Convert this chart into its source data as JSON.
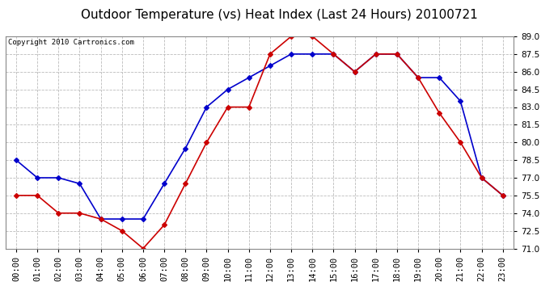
{
  "title": "Outdoor Temperature (vs) Heat Index (Last 24 Hours) 20100721",
  "copyright": "Copyright 2010 Cartronics.com",
  "hours": [
    "00:00",
    "01:00",
    "02:00",
    "03:00",
    "04:00",
    "05:00",
    "06:00",
    "07:00",
    "08:00",
    "09:00",
    "10:00",
    "11:00",
    "12:00",
    "13:00",
    "14:00",
    "15:00",
    "16:00",
    "17:00",
    "18:00",
    "19:00",
    "20:00",
    "21:00",
    "22:00",
    "23:00"
  ],
  "blue_data": [
    78.5,
    77.0,
    77.0,
    76.5,
    73.5,
    73.5,
    73.5,
    76.5,
    79.5,
    83.0,
    84.5,
    85.5,
    86.5,
    87.5,
    87.5,
    87.5,
    86.0,
    87.5,
    87.5,
    85.5,
    85.5,
    83.5,
    77.0,
    75.5
  ],
  "red_data": [
    75.5,
    75.5,
    74.0,
    74.0,
    73.5,
    72.5,
    71.0,
    73.0,
    76.5,
    80.0,
    83.0,
    83.0,
    87.5,
    89.0,
    89.0,
    87.5,
    86.0,
    87.5,
    87.5,
    85.5,
    82.5,
    80.0,
    77.0,
    75.5
  ],
  "blue_color": "#0000CC",
  "red_color": "#CC0000",
  "ylim_min": 71.0,
  "ylim_max": 89.0,
  "yticks": [
    71.0,
    72.5,
    74.0,
    75.5,
    77.0,
    78.5,
    80.0,
    81.5,
    83.0,
    84.5,
    86.0,
    87.5,
    89.0
  ],
  "background_color": "#ffffff",
  "plot_bg_color": "#ffffff",
  "grid_color": "#bbbbbb",
  "title_fontsize": 11,
  "copyright_fontsize": 6.5,
  "tick_fontsize": 7.5
}
